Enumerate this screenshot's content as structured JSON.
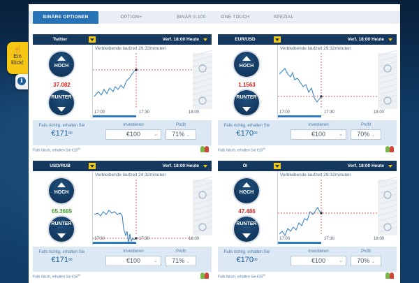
{
  "side": {
    "tab1_label": "Ein klick!",
    "tab2_icon": "info-icon"
  },
  "tabs": [
    {
      "label": "BINÄRE OPTIONEN",
      "active": true
    },
    {
      "label": "OPTION+",
      "active": false
    },
    {
      "label": "BINÄR 0-100",
      "active": false
    },
    {
      "label": "ONE TOUCH",
      "active": false
    },
    {
      "label": "SPEZIAL",
      "active": false
    }
  ],
  "panels": [
    {
      "asset": "Twitter",
      "expiry": "Verf. 18:00 Heute",
      "price": "37.082",
      "price_color": "#d0271f",
      "remaining_label": "Verbleibende laufzeit",
      "remaining_time": "29:33",
      "remaining_unit": "minuten",
      "up_label": "HOCH",
      "down_label": "RUNTER",
      "if_right_label": "Falls richtig, erhalten Sie",
      "payout_main": "€171",
      "payout_cents": "00",
      "invest_label": "Investieren",
      "invest_value": "€100",
      "profit_label": "Profit",
      "profit_value": "71%",
      "if_wrong": "Falls falsch, erhalten Sie €15",
      "if_wrong_cents": "00",
      "x_ticks": [
        "17:00",
        "17:30",
        "18:00"
      ]
    },
    {
      "asset": "EUR/USD",
      "expiry": "Verf. 18:00 Heute",
      "price": "1.1563",
      "price_color": "#d0271f",
      "remaining_label": "Verbleibende laufzeit",
      "remaining_time": "29:32",
      "remaining_unit": "minuten",
      "up_label": "HOCH",
      "down_label": "RUNTER",
      "if_right_label": "Falls richtig, erhalten Sie",
      "payout_main": "€170",
      "payout_cents": "00",
      "invest_label": "Investieren",
      "invest_value": "€100",
      "profit_label": "Profit",
      "profit_value": "70%",
      "if_wrong": "Falls falsch, erhalten Sie €15",
      "if_wrong_cents": "00",
      "x_ticks": [
        "17:00",
        "17:30",
        "18:00"
      ]
    },
    {
      "asset": "USD/RUB",
      "expiry": "Verf. 18:00 Heute",
      "price": "65.3689",
      "price_color": "#3fa12a",
      "remaining_label": "Verbleibende laufzeit",
      "remaining_time": "24:32",
      "remaining_unit": "minuten",
      "up_label": "HOCH",
      "down_label": "RUNTER",
      "if_right_label": "Falls richtig, erhalten Sie",
      "payout_main": "€171",
      "payout_cents": "00",
      "invest_label": "Investieren",
      "invest_value": "€100",
      "profit_label": "Profit",
      "profit_value": "71%",
      "if_wrong": "Falls falsch, erhalten Sie €15",
      "if_wrong_cents": "00",
      "x_ticks": [
        "17:00",
        "17:30",
        "18:00"
      ]
    },
    {
      "asset": "Öl",
      "expiry": "Verf. 18:00 Heute",
      "price": "47.486",
      "price_color": "#d0271f",
      "remaining_label": "Verbleibende laufzeit",
      "remaining_time": "29:32",
      "remaining_unit": "minuten",
      "up_label": "HOCH",
      "down_label": "RUNTER",
      "if_right_label": "Falls richtig, erhalten Sie",
      "payout_main": "€170",
      "payout_cents": "00",
      "invest_label": "Investieren",
      "invest_value": "€100",
      "profit_label": "Profit",
      "profit_value": "70%",
      "if_wrong": "Falls falsch, erhalten Sie €15",
      "if_wrong_cents": "00",
      "x_ticks": [
        "17:00",
        "17:30",
        "18:00"
      ]
    }
  ],
  "colors": {
    "accent": "#2873b5",
    "header": "#15395e",
    "line": "#2b7cc4",
    "ref": "#d0271f"
  }
}
